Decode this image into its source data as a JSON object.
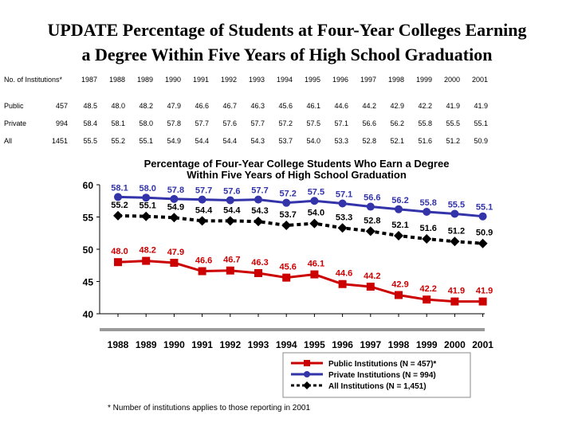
{
  "slide": {
    "title_line1": "UPDATE Percentage of Students at Four-Year Colleges Earning",
    "title_line2": "a Degree Within Five Years of High School Graduation"
  },
  "table": {
    "header_label": "No. of Institutions*",
    "years": [
      "1987",
      "1988",
      "1989",
      "1990",
      "1991",
      "1992",
      "1993",
      "1994",
      "1995",
      "1996",
      "1997",
      "1998",
      "1999",
      "2000",
      "2001"
    ],
    "rows": [
      {
        "label": "Public",
        "n": "457",
        "values": [
          "48.5",
          "48.0",
          "48.2",
          "47.9",
          "46.6",
          "46.7",
          "46.3",
          "45.6",
          "46.1",
          "44.6",
          "44.2",
          "42.9",
          "42.2",
          "41.9",
          "41.9"
        ]
      },
      {
        "label": "Private",
        "n": "994",
        "values": [
          "58.4",
          "58.1",
          "58.0",
          "57.8",
          "57.7",
          "57.6",
          "57.7",
          "57.2",
          "57.5",
          "57.1",
          "56.6",
          "56.2",
          "55.8",
          "55.5",
          "55.1"
        ]
      },
      {
        "label": "All",
        "n": "1451",
        "values": [
          "55.5",
          "55.2",
          "55.1",
          "54.9",
          "54.4",
          "54.4",
          "54.3",
          "53.7",
          "54.0",
          "53.3",
          "52.8",
          "52.1",
          "51.6",
          "51.2",
          "50.9"
        ]
      }
    ]
  },
  "chart_data": {
    "type": "line",
    "title": "Percentage of Four-Year College Students Who Earn a Degree Within Five Years of High School Graduation",
    "title_line1": "Percentage of Four-Year College Students Who Earn a Degree",
    "title_line2": "Within Five Years of High School Graduation",
    "x": [
      "1988",
      "1989",
      "1990",
      "1991",
      "1992",
      "1993",
      "1994",
      "1995",
      "1996",
      "1997",
      "1998",
      "1999",
      "2000",
      "2001"
    ],
    "ylim": [
      40,
      60
    ],
    "yticks": [
      40,
      45,
      50,
      55,
      60
    ],
    "grid": false,
    "legend_position": "bottom-right",
    "series": [
      {
        "name": "Public Institutions (N = 457)*",
        "color": "#cc0000",
        "marker": "square",
        "line": "solid",
        "values": [
          48.0,
          48.2,
          47.9,
          46.6,
          46.7,
          46.3,
          45.6,
          46.1,
          44.6,
          44.2,
          42.9,
          42.2,
          41.9,
          41.9
        ]
      },
      {
        "name": "Private Institutions (N = 994)",
        "color": "#3333aa",
        "marker": "circle",
        "line": "solid",
        "values": [
          58.1,
          58.0,
          57.8,
          57.7,
          57.6,
          57.7,
          57.2,
          57.5,
          57.1,
          56.6,
          56.2,
          55.8,
          55.5,
          55.1
        ]
      },
      {
        "name": "All Institutions (N = 1,451)",
        "color": "#000000",
        "marker": "diamond",
        "line": "dashed",
        "values": [
          55.2,
          55.1,
          54.9,
          54.4,
          54.4,
          54.3,
          53.7,
          54.0,
          53.3,
          52.8,
          52.1,
          51.6,
          51.2,
          50.9
        ]
      }
    ],
    "footnote": "* Number of institutions applies to those reporting in 2001"
  }
}
